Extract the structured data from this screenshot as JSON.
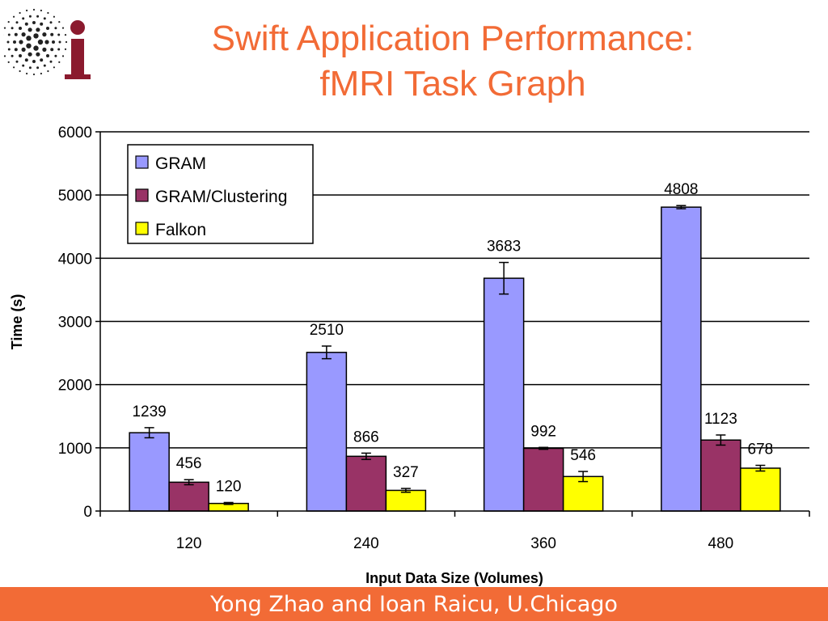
{
  "slide": {
    "title_line1": "Swift Application Performance:",
    "title_line2": "fMRI Task Graph",
    "footer": "Yong Zhao and Ioan Raicu, U.Chicago",
    "accent_color": "#f26b36",
    "logo_icon": "ci-logo-icon",
    "logo_letter": "i"
  },
  "chart_data": {
    "type": "bar",
    "title": "",
    "xlabel": "Input Data Size (Volumes)",
    "ylabel": "Time (s)",
    "ylim": [
      0,
      6000
    ],
    "yticks": [
      0,
      1000,
      2000,
      3000,
      4000,
      5000,
      6000
    ],
    "grid": true,
    "legend_position": "top-left",
    "categories": [
      "120",
      "240",
      "360",
      "480"
    ],
    "series": [
      {
        "name": "GRAM",
        "color": "#9999ff",
        "values": [
          1239,
          2510,
          3683,
          4808
        ],
        "errors": [
          80,
          100,
          250,
          25
        ]
      },
      {
        "name": "GRAM/Clustering",
        "color": "#993366",
        "values": [
          456,
          866,
          992,
          1123
        ],
        "errors": [
          40,
          50,
          15,
          80
        ]
      },
      {
        "name": "Falkon",
        "color": "#ffff00",
        "values": [
          120,
          327,
          546,
          678
        ],
        "errors": [
          15,
          30,
          80,
          45
        ]
      }
    ]
  }
}
